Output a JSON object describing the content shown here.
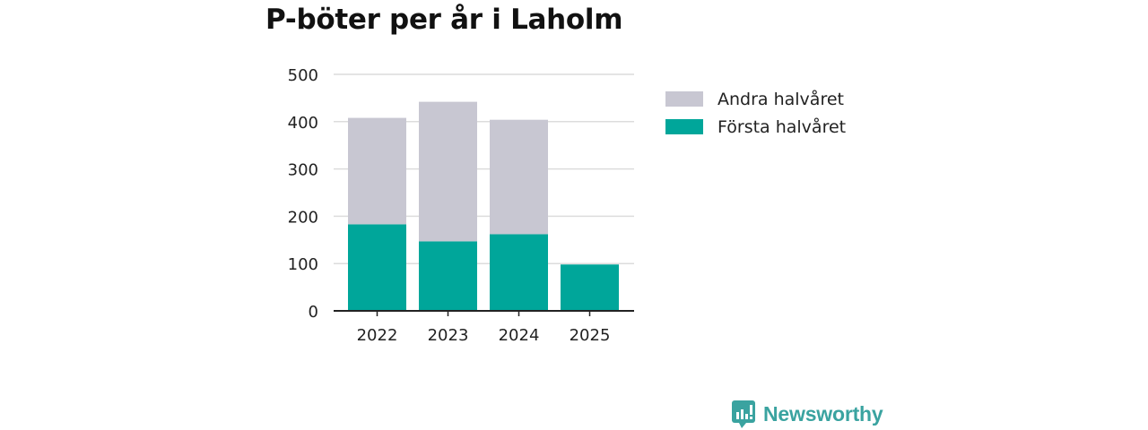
{
  "title": "P-böter per år i Laholm",
  "brand": {
    "name": "Newsworthy"
  },
  "colors": {
    "first": "#00a69a",
    "second": "#c8c7d2",
    "grid": "#dcdcdc",
    "axis": "#222222",
    "brand": "#3aa3a0"
  },
  "chart_data": {
    "type": "bar",
    "stacked": true,
    "categories": [
      "2022",
      "2023",
      "2024",
      "2025"
    ],
    "series": [
      {
        "name": "Första halvåret",
        "color": "#00a69a",
        "values": [
          183,
          147,
          162,
          98
        ]
      },
      {
        "name": "Andra halvåret",
        "color": "#c8c7d2",
        "values": [
          225,
          295,
          242,
          null
        ]
      }
    ],
    "legend_order": [
      "Andra halvåret",
      "Första halvåret"
    ],
    "legend_position": "right",
    "ylim": [
      0,
      500
    ],
    "yticks": [
      0,
      100,
      200,
      300,
      400,
      500
    ],
    "grid": true,
    "xlabel": "",
    "ylabel": ""
  }
}
